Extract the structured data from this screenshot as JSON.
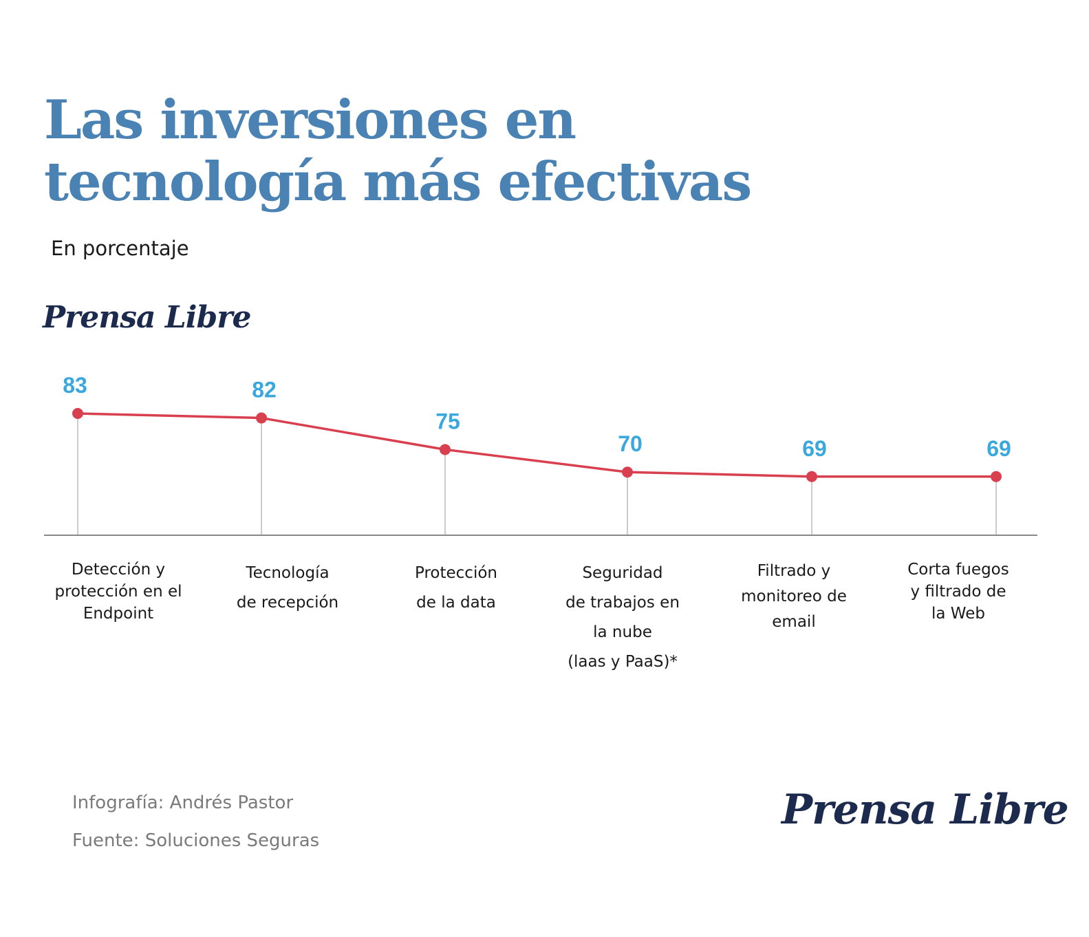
{
  "header": {
    "title": "Las inversiones en tecnología más efectivas",
    "subtitle": "En porcentaje",
    "brand": "Prensa Libre"
  },
  "footer": {
    "credit": "Infografía: Andrés Pastor",
    "source": "Fuente: Soluciones Seguras",
    "brand": "Prensa Libre"
  },
  "colors": {
    "title": "#4a82b4",
    "line": "#d9404f",
    "value_label": "#3aa8dd",
    "gridline": "#bbbbbb",
    "axis": "#888888",
    "brand": "#1b2a4d"
  },
  "chart_data": {
    "type": "line",
    "title": "Las inversiones en tecnología más efectivas",
    "subtitle": "En porcentaje",
    "xlabel": "",
    "ylabel": "",
    "categories": [
      "Detección y protección en el Endpoint",
      "Tecnología de recepción",
      "Protección de la data",
      "Seguridad de trabajos en la nube (laas y PaaS)*",
      "Filtrado y monitoreo de email",
      "Corta fuegos y filtrado de la Web"
    ],
    "category_lines": [
      [
        "Detección y",
        "protección en el",
        "Endpoint"
      ],
      [
        "Tecnología",
        "de recepción"
      ],
      [
        "Protección",
        "de la data"
      ],
      [
        "Seguridad",
        "de trabajos en",
        "la nube",
        "(laas y PaaS)*"
      ],
      [
        "Filtrado y",
        "monitoreo de",
        "email"
      ],
      [
        "Corta fuegos",
        "y filtrado de",
        "la Web"
      ]
    ],
    "series": [
      {
        "name": "Porcentaje",
        "values": [
          83,
          82,
          75,
          70,
          69,
          69
        ]
      }
    ],
    "data_labels": [
      "83",
      "82",
      "75",
      "70",
      "69",
      "69"
    ],
    "ylim": [
      56,
      83
    ],
    "grid": false,
    "legend": "none"
  }
}
